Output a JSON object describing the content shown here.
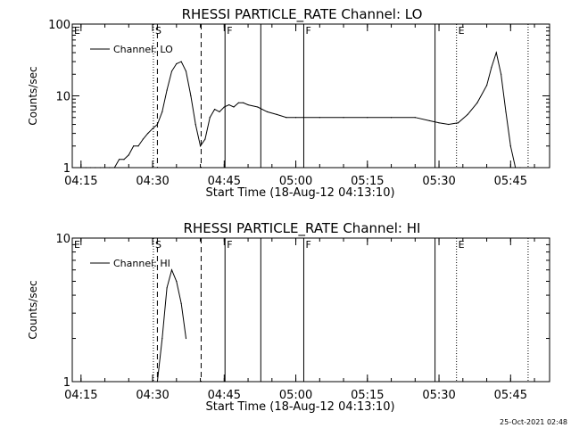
{
  "footer": {
    "timestamp": "25-Oct-2021 02:48"
  },
  "chart_data": [
    {
      "type": "line",
      "title": "RHESSI PARTICLE_RATE Channel: LO",
      "xlabel": "Start Time (18-Aug-12 04:13:10)",
      "ylabel": "Counts/sec",
      "y_scale": "log",
      "ylim": [
        1,
        100
      ],
      "xlim": [
        "04:13:10",
        "05:53:10"
      ],
      "x_ticks": [
        "04:15",
        "04:30",
        "04:45",
        "05:00",
        "05:15",
        "05:30",
        "05:45"
      ],
      "y_ticks": [
        "1",
        "10",
        "100"
      ],
      "legend": {
        "position": "top-left",
        "entries": [
          "Channel: LO"
        ]
      },
      "markers": [
        {
          "label": "E",
          "time": "04:13:10",
          "style": "none"
        },
        {
          "label": "S",
          "time": "04:30:10",
          "style": "dotted"
        },
        {
          "label": "",
          "time": "04:31:00",
          "style": "dashed"
        },
        {
          "label": "",
          "time": "04:40:10",
          "style": "dashed"
        },
        {
          "label": "F",
          "time": "04:45:10",
          "style": "solid"
        },
        {
          "label": "",
          "time": "04:52:40",
          "style": "solid"
        },
        {
          "label": "F",
          "time": "05:01:40",
          "style": "solid"
        },
        {
          "label": "",
          "time": "05:29:10",
          "style": "solid"
        },
        {
          "label": "E",
          "time": "05:33:40",
          "style": "dotted"
        },
        {
          "label": "",
          "time": "05:48:40",
          "style": "dotted"
        }
      ],
      "series": [
        {
          "name": "Channel: LO",
          "x": [
            "04:15",
            "04:16",
            "04:17",
            "04:18",
            "04:19",
            "04:20",
            "04:21",
            "04:22",
            "04:23",
            "04:24",
            "04:25",
            "04:26",
            "04:27",
            "04:28",
            "04:29",
            "04:30",
            "04:31",
            "04:32",
            "04:33",
            "04:34",
            "04:35",
            "04:36",
            "04:37",
            "04:38",
            "04:39",
            "04:40",
            "04:41",
            "04:42",
            "04:43",
            "04:44",
            "04:45",
            "04:46",
            "04:47",
            "04:48",
            "04:49",
            "04:50",
            "04:52",
            "04:54",
            "04:56",
            "04:58",
            "05:00",
            "05:05",
            "05:10",
            "05:15",
            "05:20",
            "05:25",
            "05:28",
            "05:30",
            "05:32",
            "05:34",
            "05:36",
            "05:38",
            "05:40",
            "05:41",
            "05:42",
            "05:43",
            "05:44",
            "05:45",
            "05:46",
            "05:47"
          ],
          "y": [
            1,
            1,
            1,
            1,
            1,
            1,
            1,
            1,
            1.3,
            1.3,
            1.5,
            2,
            2,
            2.5,
            3,
            3.5,
            4,
            6,
            12,
            22,
            28,
            30,
            22,
            10,
            4,
            2,
            2.5,
            5,
            6.5,
            6,
            7,
            7.5,
            7,
            8,
            8,
            7.5,
            7,
            6,
            5.5,
            5,
            5,
            5,
            5,
            5,
            5,
            5,
            4.5,
            4.2,
            4,
            4.2,
            5.5,
            8,
            14,
            25,
            40,
            20,
            6,
            2,
            1,
            1
          ]
        }
      ]
    },
    {
      "type": "line",
      "title": "RHESSI PARTICLE_RATE Channel: HI",
      "xlabel": "Start Time (18-Aug-12 04:13:10)",
      "ylabel": "Counts/sec",
      "y_scale": "log",
      "ylim": [
        1,
        10
      ],
      "xlim": [
        "04:13:10",
        "05:53:10"
      ],
      "x_ticks": [
        "04:15",
        "04:30",
        "04:45",
        "05:00",
        "05:15",
        "05:30",
        "05:45"
      ],
      "y_ticks": [
        "1",
        "10"
      ],
      "legend": {
        "position": "top-left",
        "entries": [
          "Channel: HI"
        ]
      },
      "markers": [
        {
          "label": "E",
          "time": "04:13:10",
          "style": "none"
        },
        {
          "label": "S",
          "time": "04:30:10",
          "style": "dotted"
        },
        {
          "label": "",
          "time": "04:31:00",
          "style": "dashed"
        },
        {
          "label": "",
          "time": "04:40:10",
          "style": "dashed"
        },
        {
          "label": "F",
          "time": "04:45:10",
          "style": "solid"
        },
        {
          "label": "",
          "time": "04:52:40",
          "style": "solid"
        },
        {
          "label": "F",
          "time": "05:01:40",
          "style": "solid"
        },
        {
          "label": "",
          "time": "05:29:10",
          "style": "solid"
        },
        {
          "label": "E",
          "time": "05:33:40",
          "style": "dotted"
        },
        {
          "label": "",
          "time": "05:48:40",
          "style": "dotted"
        }
      ],
      "series": [
        {
          "name": "Channel: HI",
          "x": [
            "04:31",
            "04:32",
            "04:33",
            "04:34",
            "04:35",
            "04:36",
            "04:37"
          ],
          "y": [
            1,
            2,
            4.5,
            6,
            5,
            3.5,
            2
          ]
        }
      ]
    }
  ]
}
